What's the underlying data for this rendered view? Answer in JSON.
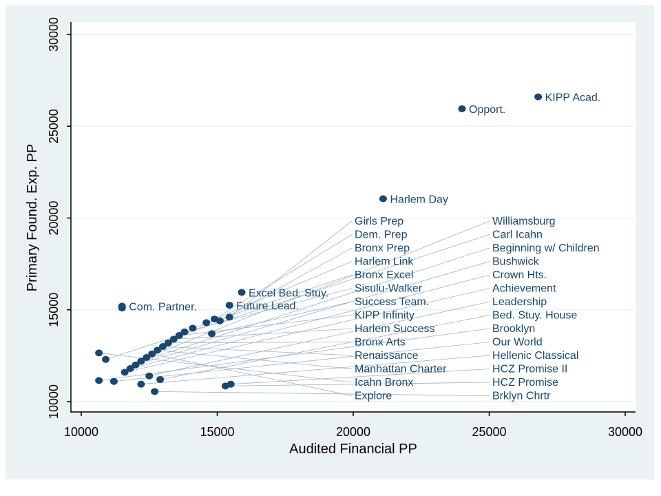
{
  "chart_data": {
    "type": "scatter",
    "title": "",
    "xlabel": "Audited Financial PP",
    "ylabel": "Primary Found. Exp. PP",
    "xlim": [
      10000,
      30000
    ],
    "ylim": [
      10000,
      30000
    ],
    "xticks": [
      "10000",
      "15000",
      "20000",
      "25000",
      "30000"
    ],
    "yticks": [
      "10000",
      "15000",
      "20000",
      "25000",
      "30000"
    ],
    "xtick_values": [
      10000,
      15000,
      20000,
      25000,
      30000
    ],
    "ytick_values": [
      10000,
      15000,
      20000,
      25000,
      30000
    ],
    "grid": "horizontal",
    "marker_color": "#1a476f",
    "background_color": "#eaf2f3",
    "points": [
      {
        "x": 26800,
        "y": 26600,
        "label": "KIPP Acad."
      },
      {
        "x": 24000,
        "y": 25950,
        "label": "Opport."
      },
      {
        "x": 21100,
        "y": 21050,
        "label": "Harlem Day"
      },
      {
        "x": 15900,
        "y": 15950,
        "label": "Excel Bed. Stuy."
      },
      {
        "x": 15450,
        "y": 15250,
        "label": "Future Lead."
      },
      {
        "x": 11500,
        "y": 15200,
        "label": "Com. Partner."
      },
      {
        "x": 11500,
        "y": 15100,
        "label": ""
      },
      {
        "x": 15450,
        "y": 14600,
        "label": "Girls Prep"
      },
      {
        "x": 14900,
        "y": 14500,
        "label": "Dem. Prep"
      },
      {
        "x": 15100,
        "y": 14400,
        "label": "Bronx Prep"
      },
      {
        "x": 14600,
        "y": 14300,
        "label": "Harlem Link"
      },
      {
        "x": 14100,
        "y": 14000,
        "label": "Bronx Excel"
      },
      {
        "x": 13800,
        "y": 13800,
        "label": "Sisulu-Walker"
      },
      {
        "x": 14800,
        "y": 13700,
        "label": "Success Team."
      },
      {
        "x": 13600,
        "y": 13600,
        "label": "KIPP Infinity"
      },
      {
        "x": 13400,
        "y": 13400,
        "label": "Harlem Success"
      },
      {
        "x": 13200,
        "y": 13200,
        "label": "Bronx Arts"
      },
      {
        "x": 13000,
        "y": 13000,
        "label": "Renaissance"
      },
      {
        "x": 12800,
        "y": 12800,
        "label": "Manhattan Charter"
      },
      {
        "x": 12600,
        "y": 12600,
        "label": "Explore"
      },
      {
        "x": 12400,
        "y": 12400,
        "label": "Williamsburg"
      },
      {
        "x": 12200,
        "y": 12200,
        "label": "Beginning w/ Children"
      },
      {
        "x": 12000,
        "y": 12000,
        "label": "Bushwick"
      },
      {
        "x": 11800,
        "y": 11800,
        "label": "Crown Hts."
      },
      {
        "x": 11600,
        "y": 11600,
        "label": "Achievement"
      },
      {
        "x": 12500,
        "y": 11400,
        "label": "Leadership"
      },
      {
        "x": 12900,
        "y": 11200,
        "label": "Bed. Stuy. House"
      },
      {
        "x": 10650,
        "y": 12650,
        "label": "Icahn Bronx"
      },
      {
        "x": 10900,
        "y": 12300,
        "label": "Carl Icahn"
      },
      {
        "x": 10650,
        "y": 11150,
        "label": "Brooklyn"
      },
      {
        "x": 11200,
        "y": 11100,
        "label": "Our World"
      },
      {
        "x": 12200,
        "y": 10950,
        "label": "Hellenic Classical"
      },
      {
        "x": 15500,
        "y": 10950,
        "label": "HCZ Promise II"
      },
      {
        "x": 15300,
        "y": 10850,
        "label": "HCZ Promise"
      },
      {
        "x": 12700,
        "y": 10550,
        "label": "Brklyn Chrtr"
      }
    ]
  }
}
